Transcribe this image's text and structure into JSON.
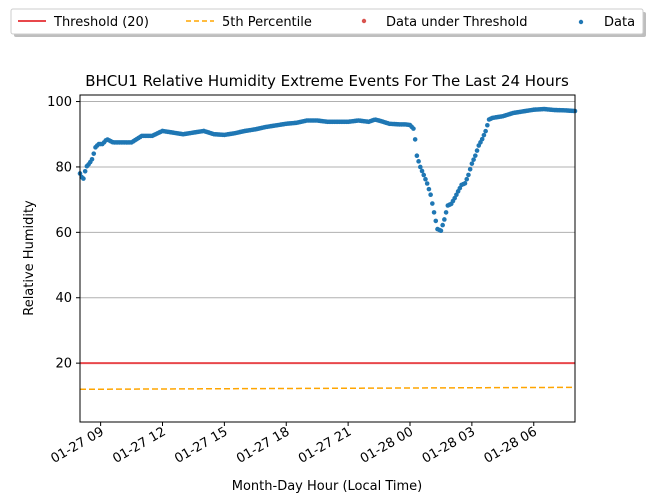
{
  "chart_data": {
    "type": "scatter",
    "title": "BHCU1 Relative Humidity Extreme Events For The Last 24 Hours",
    "xlabel": "Month-Day Hour (Local Time)",
    "ylabel": "Relative Humidity",
    "xlim_hours": [
      8.0,
      32.0
    ],
    "ylim": [
      2,
      102
    ],
    "y_ticks": [
      20,
      40,
      60,
      80,
      100
    ],
    "x_ticks": [
      {
        "hour": 9,
        "label": "01-27 09"
      },
      {
        "hour": 12,
        "label": "01-27 12"
      },
      {
        "hour": 15,
        "label": "01-27 15"
      },
      {
        "hour": 18,
        "label": "01-27 18"
      },
      {
        "hour": 21,
        "label": "01-27 21"
      },
      {
        "hour": 24,
        "label": "01-28 00"
      },
      {
        "hour": 27,
        "label": "01-28 03"
      },
      {
        "hour": 30,
        "label": "01-28 06"
      }
    ],
    "grid": "y",
    "legend_position": "top, outside plot",
    "threshold": {
      "name": "Threshold (20)",
      "value": 20,
      "color": "#e8474b"
    },
    "percentile": {
      "name": "5th Percentile",
      "start": 12.0,
      "end": 12.6,
      "color": "#ffa500"
    },
    "under_threshold": {
      "name": "Data under Threshold",
      "color": "#d9534f",
      "points": []
    },
    "data": {
      "name": "Data",
      "color": "#1f77b4",
      "anchors": [
        [
          8.0,
          78
        ],
        [
          8.15,
          76
        ],
        [
          8.3,
          80
        ],
        [
          8.45,
          81
        ],
        [
          8.6,
          82.5
        ],
        [
          8.75,
          86
        ],
        [
          8.9,
          87
        ],
        [
          9.1,
          87
        ],
        [
          9.3,
          88.5
        ],
        [
          9.6,
          87.5
        ],
        [
          10.0,
          87.5
        ],
        [
          10.5,
          87.5
        ],
        [
          11.0,
          89.5
        ],
        [
          11.5,
          89.5
        ],
        [
          12.0,
          91
        ],
        [
          12.5,
          90.5
        ],
        [
          13.0,
          90
        ],
        [
          13.5,
          90.5
        ],
        [
          14.0,
          91
        ],
        [
          14.5,
          90
        ],
        [
          15.0,
          89.8
        ],
        [
          15.5,
          90.3
        ],
        [
          16.0,
          91
        ],
        [
          16.5,
          91.5
        ],
        [
          17.0,
          92.2
        ],
        [
          17.5,
          92.7
        ],
        [
          18.0,
          93.2
        ],
        [
          18.5,
          93.5
        ],
        [
          19.0,
          94.2
        ],
        [
          19.5,
          94.2
        ],
        [
          20.0,
          93.8
        ],
        [
          20.5,
          93.8
        ],
        [
          21.0,
          93.8
        ],
        [
          21.5,
          94.2
        ],
        [
          22.0,
          93.8
        ],
        [
          22.3,
          94.5
        ],
        [
          22.6,
          94
        ],
        [
          23.0,
          93.2
        ],
        [
          23.5,
          93
        ],
        [
          23.8,
          93
        ],
        [
          24.0,
          92.8
        ],
        [
          24.2,
          91.5
        ],
        [
          24.33,
          83.5
        ],
        [
          24.5,
          80
        ],
        [
          24.67,
          77.5
        ],
        [
          24.83,
          75
        ],
        [
          25.0,
          71.5
        ],
        [
          25.17,
          66
        ],
        [
          25.33,
          61
        ],
        [
          25.5,
          60.5
        ],
        [
          25.67,
          64
        ],
        [
          25.83,
          68.2
        ],
        [
          26.0,
          68.7
        ],
        [
          26.17,
          70.5
        ],
        [
          26.33,
          72.5
        ],
        [
          26.5,
          74.5
        ],
        [
          26.67,
          75
        ],
        [
          26.83,
          77.5
        ],
        [
          27.0,
          81
        ],
        [
          27.17,
          83.5
        ],
        [
          27.33,
          86.5
        ],
        [
          27.5,
          88.5
        ],
        [
          27.67,
          91
        ],
        [
          27.83,
          94.5
        ],
        [
          28.0,
          95
        ],
        [
          28.5,
          95.5
        ],
        [
          29.0,
          96.5
        ],
        [
          29.5,
          97
        ],
        [
          30.0,
          97.5
        ],
        [
          30.5,
          97.7
        ],
        [
          31.0,
          97.4
        ],
        [
          31.5,
          97.3
        ],
        [
          32.0,
          97.1
        ]
      ]
    }
  }
}
